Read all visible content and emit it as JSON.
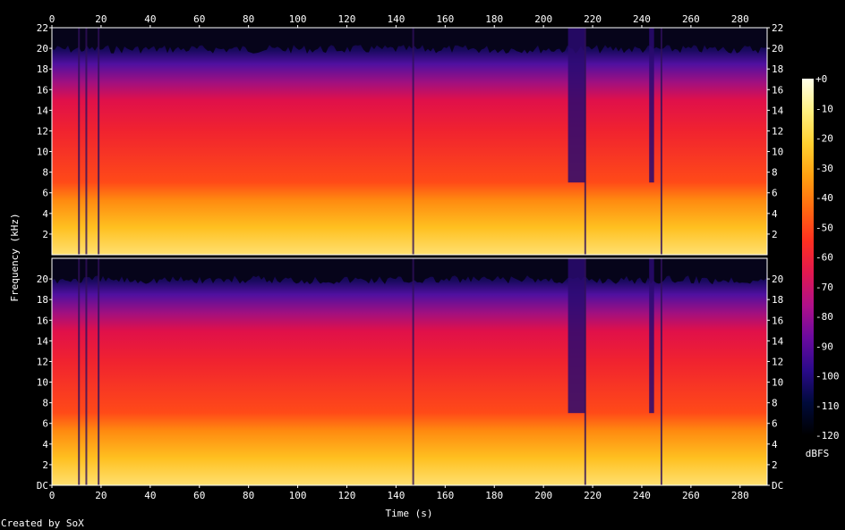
{
  "chart_data": [
    {
      "type": "heatmap",
      "channel_position": "top",
      "title": "",
      "xlabel": "Time (s)",
      "ylabel": "Frequency (kHz)",
      "xlim": [
        0,
        291
      ],
      "ylim": [
        0,
        22
      ],
      "x_ticks": [
        0,
        20,
        40,
        60,
        80,
        100,
        120,
        140,
        160,
        180,
        200,
        220,
        240,
        260,
        280
      ],
      "y_ticks": [
        "2",
        "4",
        "6",
        "8",
        "10",
        "12",
        "14",
        "16",
        "18",
        "20",
        "22"
      ],
      "dense_band_khz": [
        0,
        6
      ],
      "bright_band_khz": [
        6,
        16
      ],
      "upper_cutoff_khz": 20,
      "quiet_segments_s": [
        [
          210,
          217
        ],
        [
          243,
          245
        ]
      ],
      "narrow_dropouts_s": [
        11,
        14,
        19,
        147,
        217,
        248
      ]
    },
    {
      "type": "heatmap",
      "channel_position": "bottom",
      "title": "",
      "xlabel": "Time (s)",
      "ylabel": "Frequency (kHz)",
      "xlim": [
        0,
        291
      ],
      "ylim": [
        0,
        22
      ],
      "x_ticks": [
        0,
        20,
        40,
        60,
        80,
        100,
        120,
        140,
        160,
        180,
        200,
        220,
        240,
        260,
        280
      ],
      "y_ticks": [
        "DC",
        "2",
        "4",
        "6",
        "8",
        "10",
        "12",
        "14",
        "16",
        "18",
        "20"
      ],
      "dense_band_khz": [
        0,
        6
      ],
      "bright_band_khz": [
        6,
        16
      ],
      "upper_cutoff_khz": 20,
      "quiet_segments_s": [
        [
          210,
          217
        ],
        [
          243,
          245
        ]
      ],
      "narrow_dropouts_s": [
        11,
        14,
        19,
        147,
        217,
        248
      ]
    }
  ],
  "colorbar": {
    "label": "dBFS",
    "ticks": [
      "+0",
      "-10",
      "-20",
      "-30",
      "-40",
      "-50",
      "-60",
      "-70",
      "-80",
      "-90",
      "-100",
      "-110",
      "-120"
    ],
    "range_db": [
      -120,
      0
    ],
    "colors": [
      "#000000",
      "#000a3a",
      "#2a0a8a",
      "#6a0aa0",
      "#b0108a",
      "#e01850",
      "#ff3020",
      "#ff6a10",
      "#ffa010",
      "#ffd030",
      "#fff080",
      "#ffffe8"
    ]
  },
  "footer": {
    "credit": "Created by SoX"
  },
  "colors": {
    "background": "#000000",
    "text": "#ffffff",
    "axis": "#ffffff"
  }
}
